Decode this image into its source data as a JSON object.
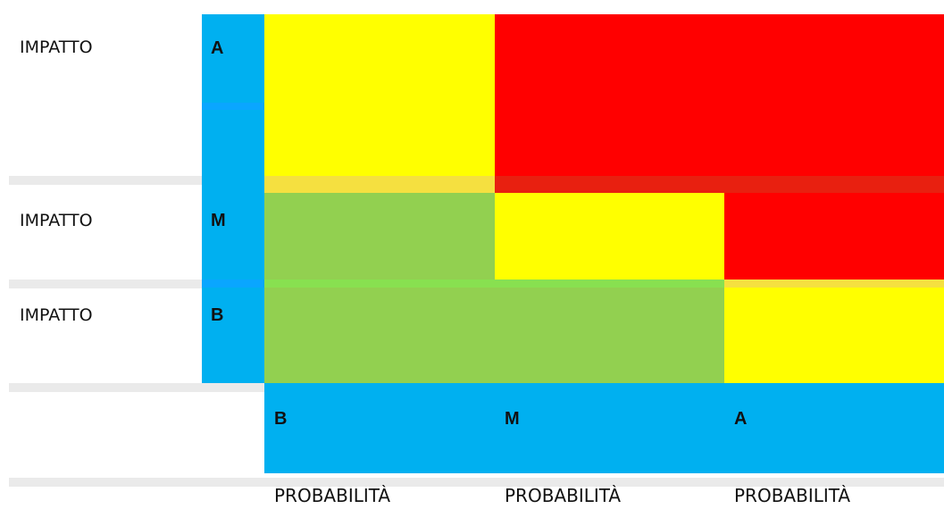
{
  "rows": [
    {
      "label": "IMPATTO",
      "level": "A"
    },
    {
      "label": "IMPATTO",
      "level": "M"
    },
    {
      "label": "IMPATTO",
      "level": "B"
    }
  ],
  "columns": [
    {
      "level": "B",
      "label": "PROBABILITÀ"
    },
    {
      "level": "M",
      "label": "PROBABILITÀ"
    },
    {
      "level": "A",
      "label": "PROBABILITÀ"
    }
  ],
  "matrix": [
    [
      "yellow",
      "red",
      "red"
    ],
    [
      "green",
      "yellow",
      "red"
    ],
    [
      "green",
      "green",
      "yellow"
    ]
  ],
  "colors": {
    "header_blue": "#00b0f0",
    "red": "#ff0000",
    "yellow": "#ffff00",
    "green": "#92d050",
    "separator": "#eaeaea"
  }
}
